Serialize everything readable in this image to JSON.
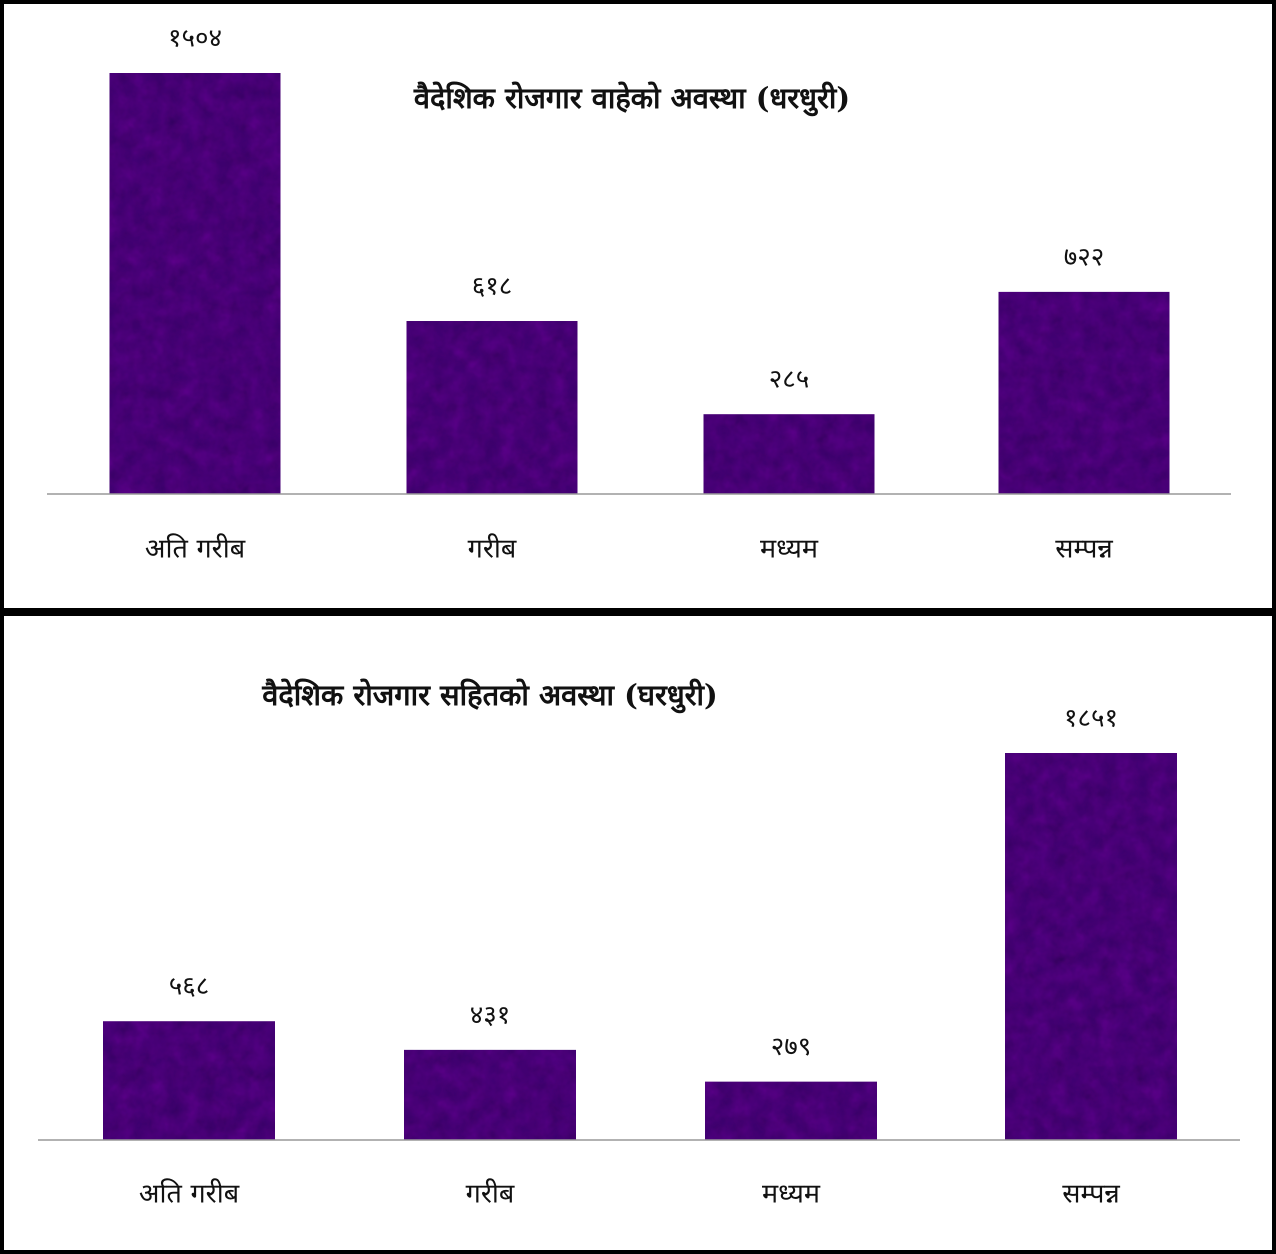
{
  "chart_data": [
    {
      "type": "bar",
      "title": "वैदेशिक रोजगार वाहेको अवस्था (धरधुरी)",
      "categories": [
        "अति गरीब",
        "गरीब",
        "मध्यम",
        "सम्पन्न"
      ],
      "values": [
        1504,
        618,
        285,
        722
      ],
      "value_labels": [
        "१५०४",
        "६१८",
        "२८५",
        "७२२"
      ],
      "color": "#3d0c70"
    },
    {
      "type": "bar",
      "title": "वैदेशिक रोजगार सहितको अवस्था (घरधुरी)",
      "categories": [
        "अति गरीब",
        "गरीब",
        "मध्यम",
        "सम्पन्न"
      ],
      "values": [
        568,
        431,
        279,
        1851
      ],
      "value_labels": [
        "५६८",
        "४३१",
        "२७९",
        "१८५१"
      ],
      "color": "#3d0c70"
    }
  ]
}
